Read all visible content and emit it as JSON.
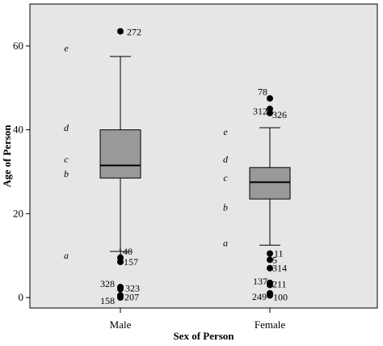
{
  "chart_data": {
    "type": "boxplot",
    "xlabel": "Sex of Person",
    "ylabel": "Age of Person",
    "ylim": [
      -2.5,
      70
    ],
    "yticks": [
      0,
      20,
      40,
      60
    ],
    "categories": [
      "Male",
      "Female"
    ],
    "grid": false,
    "background": "#e6e6e6",
    "box_color": "#999999",
    "boxes": [
      {
        "category": "Male",
        "whisker_low": 11,
        "q1": 28.5,
        "median": 31.5,
        "q3": 40,
        "whisker_high": 57.5,
        "outliers": [
          {
            "label": "272",
            "value": 63.5
          },
          {
            "label": "140",
            "value": 9.5
          },
          {
            "label": "157",
            "value": 8.5
          },
          {
            "label": "328",
            "value": 2.5
          },
          {
            "label": "323",
            "value": 2
          },
          {
            "label": "158",
            "value": 0
          },
          {
            "label": "207",
            "value": 0.5
          }
        ]
      },
      {
        "category": "Female",
        "whisker_low": 12.5,
        "q1": 23.5,
        "median": 27.5,
        "q3": 31,
        "whisker_high": 40.5,
        "outliers": [
          {
            "label": "78",
            "value": 47.5
          },
          {
            "label": "312",
            "value": 45
          },
          {
            "label": "326",
            "value": 44
          },
          {
            "label": "11",
            "value": 10.5
          },
          {
            "label": "5",
            "value": 9
          },
          {
            "label": "314",
            "value": 7
          },
          {
            "label": "137",
            "value": 3.5
          },
          {
            "label": "211",
            "value": 3
          },
          {
            "label": "249",
            "value": 1
          },
          {
            "label": "100",
            "value": 0.5
          }
        ]
      }
    ],
    "annotations": [
      {
        "text": "e",
        "group": "Male",
        "value": 59.5
      },
      {
        "text": "d",
        "group": "Male",
        "value": 40.5
      },
      {
        "text": "c",
        "group": "Male",
        "value": 33
      },
      {
        "text": "b",
        "group": "Male",
        "value": 29.5
      },
      {
        "text": "a",
        "group": "Male",
        "value": 10
      },
      {
        "text": "e",
        "group": "Female",
        "value": 39.5
      },
      {
        "text": "d",
        "group": "Female",
        "value": 33
      },
      {
        "text": "c",
        "group": "Female",
        "value": 28.5
      },
      {
        "text": "b",
        "group": "Female",
        "value": 21.5
      },
      {
        "text": "a",
        "group": "Female",
        "value": 13
      }
    ]
  }
}
